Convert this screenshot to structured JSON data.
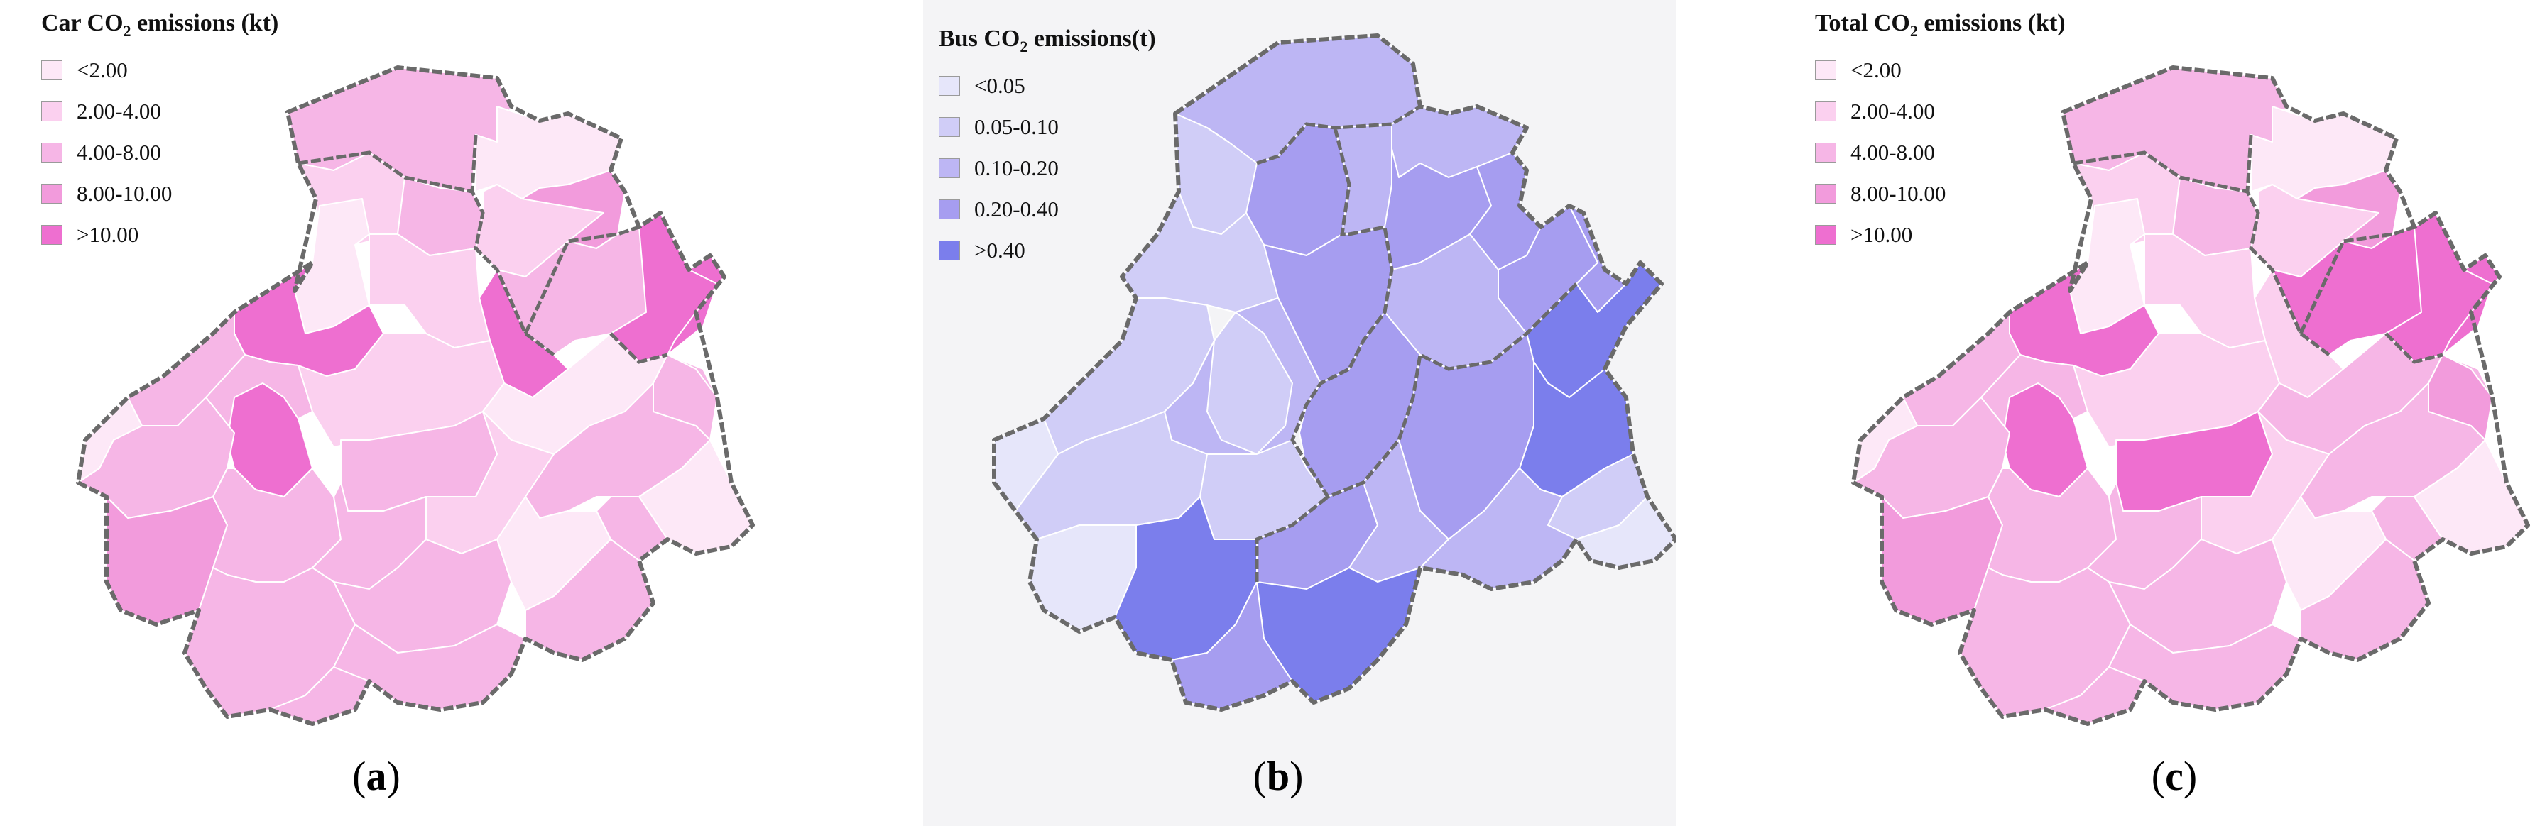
{
  "panels": [
    {
      "id": "a",
      "label": "a",
      "legend": {
        "title_prefix": "Car CO",
        "title_sub": "2",
        "title_suffix": " emissions (kt)",
        "classes": [
          {
            "label": "<2.00",
            "color": "#fde8f7"
          },
          {
            "label": "2.00-4.00",
            "color": "#fbd0ef"
          },
          {
            "label": "4.00-8.00",
            "color": "#f6b6e6"
          },
          {
            "label": "8.00-10.00",
            "color": "#f29bdc"
          },
          {
            "label": ">10.00",
            "color": "#ee6fd0"
          }
        ]
      }
    },
    {
      "id": "b",
      "label": "b",
      "legend": {
        "title_prefix": "Bus CO",
        "title_sub": "2",
        "title_suffix": " emissions(t)",
        "classes": [
          {
            "label": "<0.05",
            "color": "#e6e6fa"
          },
          {
            "label": "0.05-0.10",
            "color": "#d0cdf7"
          },
          {
            "label": "0.10-0.20",
            "color": "#bdb6f4"
          },
          {
            "label": "0.20-0.40",
            "color": "#a69df0"
          },
          {
            "label": ">0.40",
            "color": "#7b7eec"
          }
        ]
      }
    },
    {
      "id": "c",
      "label": "c",
      "legend": {
        "title_prefix": "Total CO",
        "title_sub": "2",
        "title_suffix": " emissions (kt)",
        "classes": [
          {
            "label": "<2.00",
            "color": "#fde8f7"
          },
          {
            "label": "2.00-4.00",
            "color": "#fbd0ef"
          },
          {
            "label": "4.00-8.00",
            "color": "#f6b6e6"
          },
          {
            "label": "8.00-10.00",
            "color": "#f29bdc"
          },
          {
            "label": ">10.00",
            "color": "#ee6fd0"
          }
        ]
      }
    }
  ]
}
